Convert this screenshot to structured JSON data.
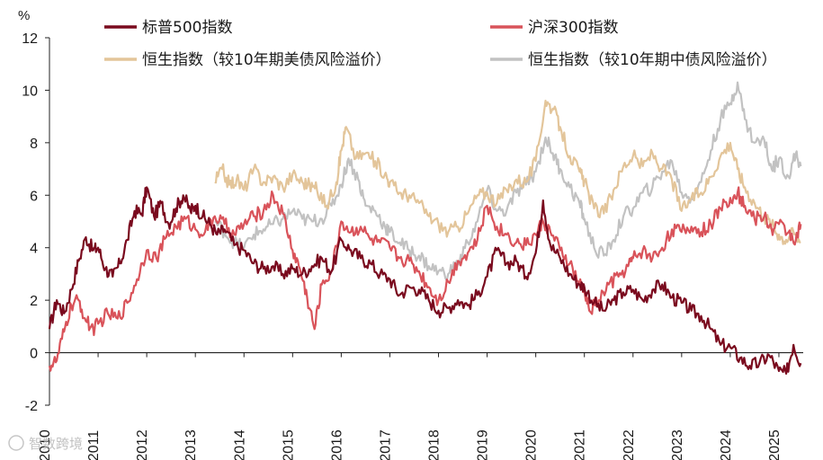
{
  "chart_data": {
    "type": "line",
    "title": "",
    "xlabel": "",
    "ylabel": "%",
    "ylim": [
      -2,
      12
    ],
    "yticks": [
      -2,
      0,
      2,
      4,
      6,
      8,
      10,
      12
    ],
    "xlim": [
      2010,
      2025.5
    ],
    "xticks": [
      "2010",
      "2011",
      "2012",
      "2013",
      "2014",
      "2015",
      "2016",
      "2017",
      "2018",
      "2019",
      "2020",
      "2021",
      "2022",
      "2023",
      "2024",
      "2025"
    ],
    "legend": "top",
    "watermark": "智数跨境",
    "series": [
      {
        "name": "标普500指数",
        "color": "#7a0a1e",
        "points": [
          [
            2010.0,
            0.9
          ],
          [
            2010.15,
            2.0
          ],
          [
            2010.3,
            1.5
          ],
          [
            2010.45,
            2.4
          ],
          [
            2010.6,
            3.5
          ],
          [
            2010.75,
            4.4
          ],
          [
            2010.9,
            3.9
          ],
          [
            2011.0,
            4.0
          ],
          [
            2011.15,
            3.2
          ],
          [
            2011.3,
            2.9
          ],
          [
            2011.45,
            3.4
          ],
          [
            2011.6,
            4.3
          ],
          [
            2011.75,
            5.4
          ],
          [
            2011.9,
            5.3
          ],
          [
            2012.0,
            6.3
          ],
          [
            2012.15,
            5.2
          ],
          [
            2012.3,
            5.7
          ],
          [
            2012.45,
            4.9
          ],
          [
            2012.6,
            5.5
          ],
          [
            2012.75,
            6.0
          ],
          [
            2012.9,
            5.4
          ],
          [
            2013.0,
            5.6
          ],
          [
            2013.15,
            5.2
          ],
          [
            2013.3,
            4.9
          ],
          [
            2013.45,
            4.5
          ],
          [
            2013.6,
            4.7
          ],
          [
            2013.8,
            4.1
          ],
          [
            2014.0,
            3.9
          ],
          [
            2014.2,
            3.4
          ],
          [
            2014.4,
            3.2
          ],
          [
            2014.6,
            3.3
          ],
          [
            2014.8,
            3.0
          ],
          [
            2015.0,
            3.2
          ],
          [
            2015.2,
            3.0
          ],
          [
            2015.4,
            3.3
          ],
          [
            2015.6,
            3.6
          ],
          [
            2015.8,
            3.1
          ],
          [
            2016.0,
            4.3
          ],
          [
            2016.2,
            3.9
          ],
          [
            2016.4,
            3.6
          ],
          [
            2016.6,
            3.4
          ],
          [
            2016.8,
            3.0
          ],
          [
            2017.0,
            2.8
          ],
          [
            2017.2,
            2.2
          ],
          [
            2017.4,
            2.5
          ],
          [
            2017.6,
            2.4
          ],
          [
            2017.8,
            2.0
          ],
          [
            2018.0,
            1.6
          ],
          [
            2018.2,
            1.7
          ],
          [
            2018.4,
            2.0
          ],
          [
            2018.6,
            1.8
          ],
          [
            2018.8,
            2.2
          ],
          [
            2019.0,
            2.9
          ],
          [
            2019.2,
            3.9
          ],
          [
            2019.4,
            3.4
          ],
          [
            2019.6,
            3.5
          ],
          [
            2019.8,
            2.9
          ],
          [
            2020.0,
            3.8
          ],
          [
            2020.15,
            5.8
          ],
          [
            2020.3,
            4.1
          ],
          [
            2020.5,
            3.6
          ],
          [
            2020.7,
            3.0
          ],
          [
            2020.9,
            2.6
          ],
          [
            2021.0,
            2.5
          ],
          [
            2021.2,
            1.9
          ],
          [
            2021.4,
            1.6
          ],
          [
            2021.6,
            2.0
          ],
          [
            2021.8,
            2.3
          ],
          [
            2022.0,
            2.4
          ],
          [
            2022.2,
            2.0
          ],
          [
            2022.4,
            2.4
          ],
          [
            2022.6,
            2.6
          ],
          [
            2022.8,
            2.1
          ],
          [
            2023.0,
            1.9
          ],
          [
            2023.2,
            1.6
          ],
          [
            2023.4,
            1.4
          ],
          [
            2023.6,
            0.9
          ],
          [
            2023.8,
            0.3
          ],
          [
            2024.0,
            0.2
          ],
          [
            2024.2,
            -0.2
          ],
          [
            2024.4,
            -0.5
          ],
          [
            2024.6,
            -0.4
          ],
          [
            2024.8,
            -0.1
          ],
          [
            2025.0,
            -0.7
          ],
          [
            2025.15,
            -0.8
          ],
          [
            2025.3,
            0.3
          ],
          [
            2025.45,
            -0.4
          ]
        ]
      },
      {
        "name": "沪深300指数",
        "color": "#d9535a",
        "points": [
          [
            2010.0,
            -0.5
          ],
          [
            2010.15,
            -0.3
          ],
          [
            2010.3,
            0.8
          ],
          [
            2010.45,
            1.8
          ],
          [
            2010.6,
            2.0
          ],
          [
            2010.75,
            1.2
          ],
          [
            2010.9,
            0.9
          ],
          [
            2011.0,
            1.1
          ],
          [
            2011.2,
            1.5
          ],
          [
            2011.4,
            1.3
          ],
          [
            2011.6,
            1.9
          ],
          [
            2011.8,
            2.8
          ],
          [
            2012.0,
            3.9
          ],
          [
            2012.2,
            3.6
          ],
          [
            2012.4,
            4.4
          ],
          [
            2012.6,
            4.8
          ],
          [
            2012.8,
            5.1
          ],
          [
            2013.0,
            4.7
          ],
          [
            2013.2,
            4.6
          ],
          [
            2013.4,
            5.2
          ],
          [
            2013.6,
            4.9
          ],
          [
            2013.8,
            4.5
          ],
          [
            2014.0,
            4.9
          ],
          [
            2014.2,
            5.2
          ],
          [
            2014.4,
            5.4
          ],
          [
            2014.6,
            6.0
          ],
          [
            2014.8,
            5.3
          ],
          [
            2015.0,
            3.9
          ],
          [
            2015.15,
            3.2
          ],
          [
            2015.3,
            2.1
          ],
          [
            2015.45,
            0.9
          ],
          [
            2015.6,
            2.6
          ],
          [
            2015.8,
            3.1
          ],
          [
            2016.0,
            5.0
          ],
          [
            2016.2,
            4.6
          ],
          [
            2016.4,
            4.8
          ],
          [
            2016.6,
            4.3
          ],
          [
            2016.8,
            4.2
          ],
          [
            2017.0,
            4.0
          ],
          [
            2017.2,
            3.6
          ],
          [
            2017.4,
            3.5
          ],
          [
            2017.6,
            3.1
          ],
          [
            2017.8,
            2.5
          ],
          [
            2018.0,
            2.0
          ],
          [
            2018.2,
            2.7
          ],
          [
            2018.4,
            3.5
          ],
          [
            2018.6,
            3.8
          ],
          [
            2018.8,
            4.3
          ],
          [
            2019.0,
            5.6
          ],
          [
            2019.2,
            4.8
          ],
          [
            2019.4,
            4.5
          ],
          [
            2019.6,
            4.2
          ],
          [
            2019.8,
            4.1
          ],
          [
            2020.0,
            4.5
          ],
          [
            2020.15,
            5.0
          ],
          [
            2020.3,
            4.6
          ],
          [
            2020.5,
            3.9
          ],
          [
            2020.7,
            3.4
          ],
          [
            2020.9,
            2.6
          ],
          [
            2021.0,
            2.4
          ],
          [
            2021.1,
            1.6
          ],
          [
            2021.3,
            2.0
          ],
          [
            2021.5,
            2.6
          ],
          [
            2021.7,
            2.9
          ],
          [
            2021.9,
            3.3
          ],
          [
            2022.0,
            3.6
          ],
          [
            2022.2,
            3.9
          ],
          [
            2022.4,
            3.6
          ],
          [
            2022.6,
            4.0
          ],
          [
            2022.8,
            4.7
          ],
          [
            2023.0,
            4.6
          ],
          [
            2023.2,
            4.8
          ],
          [
            2023.4,
            4.6
          ],
          [
            2023.6,
            4.9
          ],
          [
            2023.8,
            5.5
          ],
          [
            2024.0,
            5.9
          ],
          [
            2024.15,
            6.1
          ],
          [
            2024.3,
            5.6
          ],
          [
            2024.5,
            5.1
          ],
          [
            2024.7,
            5.2
          ],
          [
            2024.85,
            4.7
          ],
          [
            2025.0,
            4.9
          ],
          [
            2025.2,
            4.6
          ],
          [
            2025.35,
            4.3
          ],
          [
            2025.45,
            4.9
          ]
        ]
      },
      {
        "name": "恒生指数（较10年期美债风险溢价）",
        "color": "#e3c59a",
        "points": [
          [
            2013.4,
            6.5
          ],
          [
            2013.55,
            7.0
          ],
          [
            2013.7,
            6.4
          ],
          [
            2013.85,
            6.6
          ],
          [
            2014.0,
            6.2
          ],
          [
            2014.2,
            7.0
          ],
          [
            2014.4,
            6.5
          ],
          [
            2014.6,
            6.7
          ],
          [
            2014.8,
            6.3
          ],
          [
            2015.0,
            6.8
          ],
          [
            2015.2,
            6.5
          ],
          [
            2015.35,
            6.4
          ],
          [
            2015.5,
            6.2
          ],
          [
            2015.7,
            5.6
          ],
          [
            2015.9,
            6.5
          ],
          [
            2016.0,
            7.7
          ],
          [
            2016.1,
            8.6
          ],
          [
            2016.3,
            7.4
          ],
          [
            2016.5,
            7.6
          ],
          [
            2016.7,
            7.3
          ],
          [
            2016.9,
            6.8
          ],
          [
            2017.0,
            6.5
          ],
          [
            2017.2,
            6.1
          ],
          [
            2017.4,
            6.0
          ],
          [
            2017.6,
            5.7
          ],
          [
            2017.8,
            5.2
          ],
          [
            2018.0,
            4.9
          ],
          [
            2018.2,
            4.6
          ],
          [
            2018.4,
            4.8
          ],
          [
            2018.6,
            5.3
          ],
          [
            2018.8,
            6.0
          ],
          [
            2019.0,
            6.1
          ],
          [
            2019.2,
            5.7
          ],
          [
            2019.4,
            6.2
          ],
          [
            2019.6,
            6.6
          ],
          [
            2019.8,
            6.5
          ],
          [
            2020.0,
            7.3
          ],
          [
            2020.2,
            9.6
          ],
          [
            2020.35,
            9.3
          ],
          [
            2020.5,
            8.6
          ],
          [
            2020.7,
            7.5
          ],
          [
            2020.9,
            6.9
          ],
          [
            2021.0,
            6.5
          ],
          [
            2021.2,
            5.5
          ],
          [
            2021.4,
            5.3
          ],
          [
            2021.6,
            6.2
          ],
          [
            2021.8,
            7.1
          ],
          [
            2022.0,
            7.5
          ],
          [
            2022.2,
            7.1
          ],
          [
            2022.4,
            7.6
          ],
          [
            2022.6,
            7.0
          ],
          [
            2022.8,
            6.6
          ],
          [
            2023.0,
            5.4
          ],
          [
            2023.2,
            5.9
          ],
          [
            2023.4,
            6.1
          ],
          [
            2023.6,
            6.7
          ],
          [
            2023.8,
            7.5
          ],
          [
            2024.0,
            8.0
          ],
          [
            2024.15,
            7.0
          ],
          [
            2024.3,
            6.3
          ],
          [
            2024.5,
            5.7
          ],
          [
            2024.7,
            5.2
          ],
          [
            2024.85,
            4.9
          ],
          [
            2025.0,
            4.5
          ],
          [
            2025.15,
            4.3
          ],
          [
            2025.3,
            4.6
          ],
          [
            2025.45,
            4.2
          ]
        ]
      },
      {
        "name": "恒生指数（较10年期中债风险溢价）",
        "color": "#c2c2c2",
        "points": [
          [
            2013.4,
            5.0
          ],
          [
            2013.6,
            4.6
          ],
          [
            2013.8,
            4.2
          ],
          [
            2014.0,
            4.0
          ],
          [
            2014.2,
            4.5
          ],
          [
            2014.4,
            4.7
          ],
          [
            2014.6,
            4.9
          ],
          [
            2014.8,
            5.1
          ],
          [
            2015.0,
            5.4
          ],
          [
            2015.2,
            5.1
          ],
          [
            2015.4,
            5.0
          ],
          [
            2015.6,
            5.1
          ],
          [
            2015.8,
            5.6
          ],
          [
            2016.0,
            6.4
          ],
          [
            2016.15,
            7.4
          ],
          [
            2016.35,
            6.6
          ],
          [
            2016.5,
            5.6
          ],
          [
            2016.7,
            5.4
          ],
          [
            2016.9,
            4.8
          ],
          [
            2017.0,
            4.6
          ],
          [
            2017.2,
            4.2
          ],
          [
            2017.4,
            3.9
          ],
          [
            2017.6,
            3.7
          ],
          [
            2017.8,
            3.3
          ],
          [
            2018.0,
            3.1
          ],
          [
            2018.2,
            3.0
          ],
          [
            2018.4,
            3.4
          ],
          [
            2018.6,
            4.2
          ],
          [
            2018.8,
            5.0
          ],
          [
            2019.0,
            6.2
          ],
          [
            2019.2,
            5.4
          ],
          [
            2019.4,
            5.4
          ],
          [
            2019.6,
            6.1
          ],
          [
            2019.8,
            6.4
          ],
          [
            2020.0,
            6.9
          ],
          [
            2020.2,
            8.2
          ],
          [
            2020.35,
            7.6
          ],
          [
            2020.5,
            7.0
          ],
          [
            2020.7,
            6.3
          ],
          [
            2020.9,
            5.7
          ],
          [
            2021.0,
            5.1
          ],
          [
            2021.2,
            4.0
          ],
          [
            2021.4,
            3.7
          ],
          [
            2021.6,
            4.3
          ],
          [
            2021.8,
            5.2
          ],
          [
            2022.0,
            5.5
          ],
          [
            2022.2,
            6.1
          ],
          [
            2022.4,
            6.3
          ],
          [
            2022.6,
            6.9
          ],
          [
            2022.8,
            7.3
          ],
          [
            2023.0,
            6.1
          ],
          [
            2023.2,
            5.9
          ],
          [
            2023.4,
            6.5
          ],
          [
            2023.6,
            7.7
          ],
          [
            2023.8,
            8.9
          ],
          [
            2024.0,
            9.5
          ],
          [
            2024.15,
            10.3
          ],
          [
            2024.3,
            8.9
          ],
          [
            2024.5,
            8.0
          ],
          [
            2024.7,
            8.1
          ],
          [
            2024.85,
            7.0
          ],
          [
            2025.0,
            7.4
          ],
          [
            2025.2,
            6.7
          ],
          [
            2025.35,
            7.6
          ],
          [
            2025.45,
            7.1
          ]
        ]
      }
    ]
  }
}
